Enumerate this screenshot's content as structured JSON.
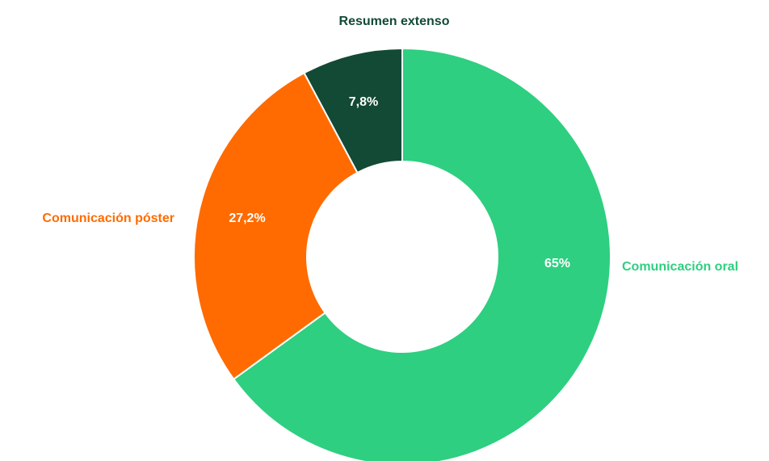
{
  "chart_data": {
    "type": "donut",
    "categories": [
      "Comunicación oral",
      "Comunicación póster",
      "Resumen extenso"
    ],
    "values": [
      65,
      27.2,
      7.8
    ],
    "value_labels": [
      "65%",
      "27,2%",
      "7,8%"
    ],
    "colors": [
      "#2ecf80",
      "#ff6b00",
      "#134a35"
    ]
  }
}
